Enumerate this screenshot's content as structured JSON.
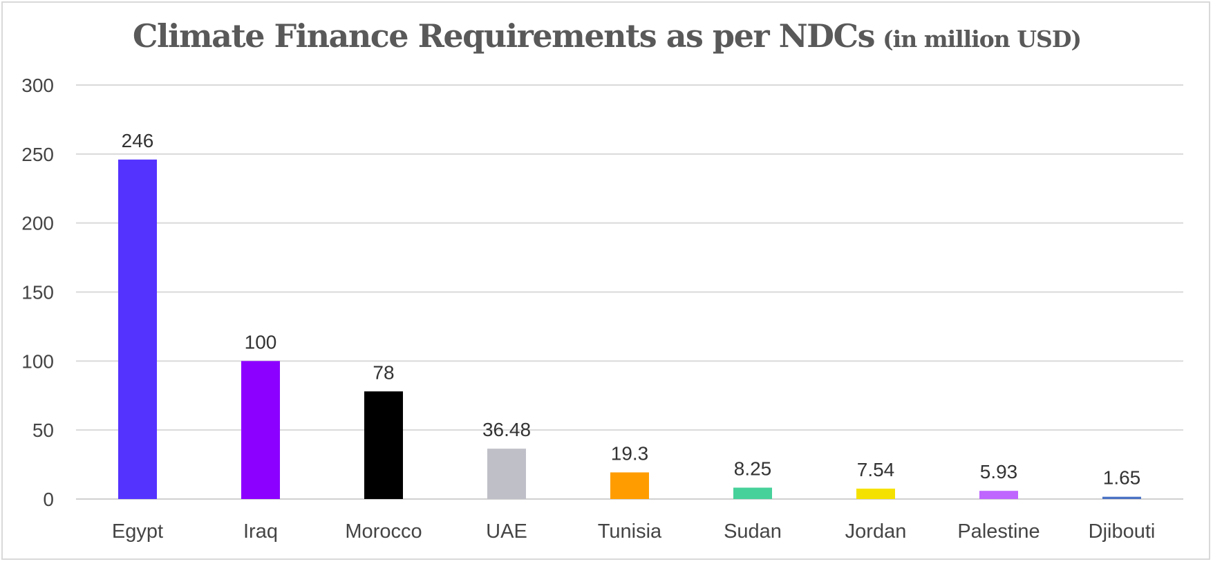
{
  "chart_data": {
    "type": "bar",
    "title": "Climate Finance Requirements as per NDCs",
    "subtitle": "(in million USD)",
    "xlabel": "",
    "ylabel": "",
    "ylim": [
      0,
      300
    ],
    "yticks": [
      0,
      50,
      100,
      150,
      200,
      250,
      300
    ],
    "grid": true,
    "legend": "none",
    "categories": [
      "Egypt",
      "Iraq",
      "Morocco",
      "UAE",
      "Tunisia",
      "Sudan",
      "Jordan",
      "Palestine",
      "Djibouti"
    ],
    "values": [
      246,
      100,
      78,
      36.48,
      19.3,
      8.25,
      7.54,
      5.93,
      1.65
    ],
    "data_labels": [
      "246",
      "100",
      "78",
      "36.48",
      "19.3",
      "8.25",
      "7.54",
      "5.93",
      "1.65"
    ],
    "colors": [
      "#5533ff",
      "#8c00ff",
      "#000000",
      "#bfbfc8",
      "#ff9d00",
      "#47d19a",
      "#f5e100",
      "#bf66ff",
      "#4a72c4"
    ]
  }
}
